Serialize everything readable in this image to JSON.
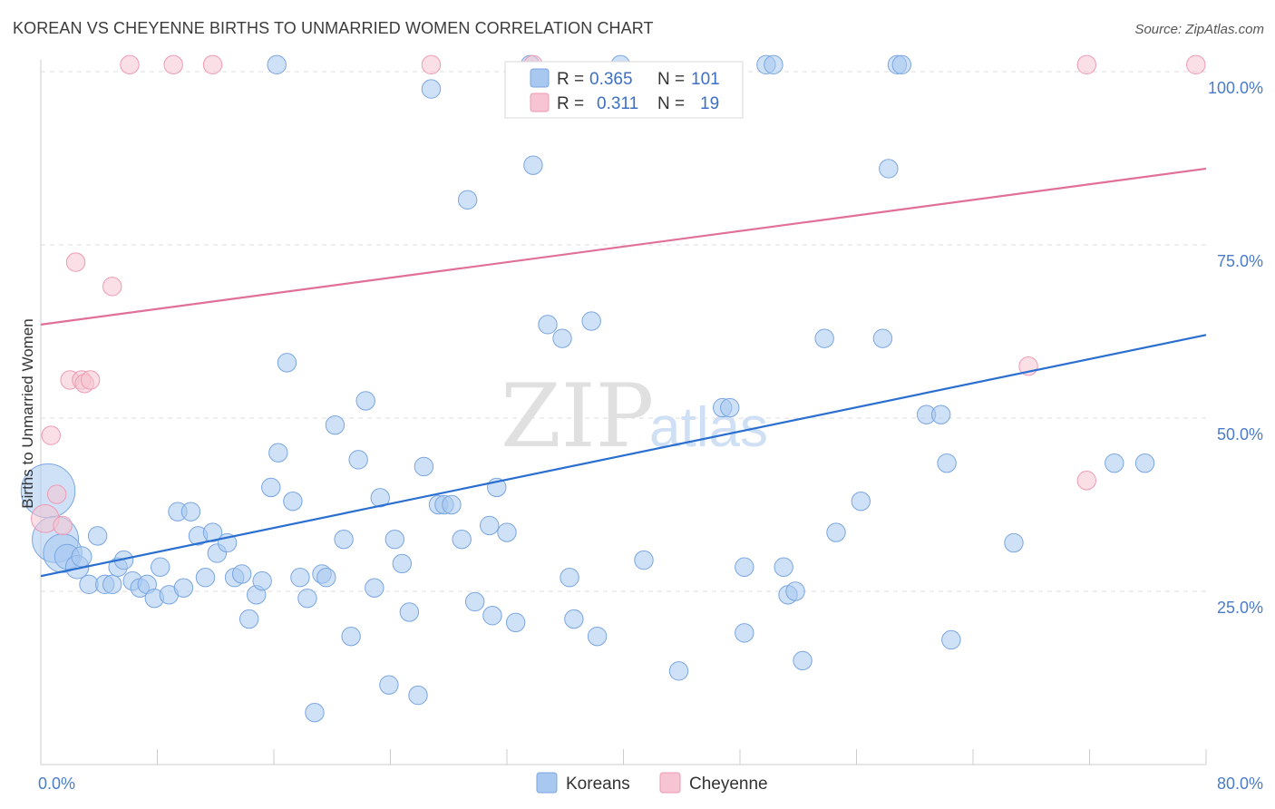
{
  "header": {
    "title": "KOREAN VS CHEYENNE BIRTHS TO UNMARRIED WOMEN CORRELATION CHART",
    "source": "Source: ZipAtlas.com"
  },
  "watermark": {
    "zip": "ZIP",
    "atlas": "atlas"
  },
  "legend": {
    "r_label": "R =",
    "n_label": "N =",
    "entries": [
      {
        "r": "0.365",
        "n": "101",
        "color": "#a8c8f0"
      },
      {
        "r": "0.311",
        "n": "19",
        "color": "#f6b8cb"
      }
    ]
  },
  "colors": {
    "blue_fill": "#a8c8f0",
    "blue_stroke": "#7aa6e0",
    "blue_line": "#2a6fcf",
    "pink_fill": "#f6c4d2",
    "pink_stroke": "#ee9ab3",
    "pink_line": "#e0709a"
  },
  "chart_data": {
    "type": "scatter",
    "title": "KOREAN VS CHEYENNE BIRTHS TO UNMARRIED WOMEN CORRELATION CHART",
    "ylabel": "Births to Unmarried Women",
    "xlabel": "",
    "xlim": [
      0,
      80
    ],
    "ylim": [
      0,
      100
    ],
    "x_tick_labels": [
      "0.0%",
      "80.0%"
    ],
    "y_tick_labels": [
      "100.0%",
      "75.0%",
      "50.0%",
      "25.0%"
    ],
    "y_tick_values": [
      100,
      75,
      50,
      25
    ],
    "grid": "horizontal dashed",
    "legend_position": "top-center",
    "series": [
      {
        "name": "Koreans",
        "r": 0.365,
        "n": 101,
        "trend": {
          "x": [
            0,
            80
          ],
          "y": [
            27.2,
            62.0
          ]
        },
        "points": [
          [
            0.5,
            39.5,
            3.5
          ],
          [
            1.0,
            32.5,
            3.0
          ],
          [
            1.5,
            30.5,
            2.5
          ],
          [
            1.8,
            30.0,
            1.6
          ],
          [
            2.5,
            28.5,
            1.5
          ],
          [
            2.8,
            30.0,
            1.3
          ],
          [
            3.3,
            26.0,
            1.2
          ],
          [
            3.9,
            33.0,
            1.2
          ],
          [
            4.4,
            26.0,
            1.2
          ],
          [
            4.9,
            26.0,
            1.2
          ],
          [
            5.3,
            28.5,
            1.2
          ],
          [
            5.7,
            29.5,
            1.2
          ],
          [
            6.3,
            26.5,
            1.2
          ],
          [
            6.8,
            25.5,
            1.2
          ],
          [
            7.3,
            26.0,
            1.2
          ],
          [
            7.8,
            24.0,
            1.2
          ],
          [
            8.2,
            28.5,
            1.2
          ],
          [
            8.8,
            24.5,
            1.2
          ],
          [
            9.4,
            36.5,
            1.2
          ],
          [
            9.8,
            25.5,
            1.2
          ],
          [
            10.3,
            36.5,
            1.2
          ],
          [
            10.8,
            33.0,
            1.2
          ],
          [
            11.3,
            27.0,
            1.2
          ],
          [
            11.8,
            33.5,
            1.2
          ],
          [
            12.1,
            30.5,
            1.2
          ],
          [
            12.8,
            32.0,
            1.2
          ],
          [
            13.3,
            27.0,
            1.2
          ],
          [
            13.8,
            27.5,
            1.2
          ],
          [
            14.3,
            21.0,
            1.2
          ],
          [
            14.8,
            24.5,
            1.2
          ],
          [
            15.2,
            26.5,
            1.2
          ],
          [
            15.8,
            40.0,
            1.2
          ],
          [
            16.3,
            45.0,
            1.2
          ],
          [
            16.9,
            58.0,
            1.2
          ],
          [
            17.3,
            38.0,
            1.2
          ],
          [
            17.8,
            27.0,
            1.2
          ],
          [
            18.3,
            24.0,
            1.2
          ],
          [
            18.8,
            7.5,
            1.2
          ],
          [
            19.3,
            27.5,
            1.2
          ],
          [
            19.6,
            27.0,
            1.2
          ],
          [
            20.2,
            49.0,
            1.2
          ],
          [
            20.8,
            32.5,
            1.2
          ],
          [
            21.3,
            18.5,
            1.2
          ],
          [
            21.8,
            44.0,
            1.2
          ],
          [
            22.3,
            52.5,
            1.2
          ],
          [
            22.9,
            25.5,
            1.2
          ],
          [
            23.3,
            38.5,
            1.2
          ],
          [
            23.9,
            11.5,
            1.2
          ],
          [
            24.3,
            32.5,
            1.2
          ],
          [
            24.8,
            29.0,
            1.2
          ],
          [
            25.3,
            22.0,
            1.2
          ],
          [
            25.9,
            10.0,
            1.2
          ],
          [
            26.3,
            43.0,
            1.2
          ],
          [
            26.8,
            97.5,
            1.2
          ],
          [
            27.3,
            37.5,
            1.2
          ],
          [
            27.7,
            37.5,
            1.2
          ],
          [
            28.2,
            37.5,
            1.2
          ],
          [
            28.9,
            32.5,
            1.2
          ],
          [
            29.3,
            81.5,
            1.2
          ],
          [
            29.8,
            23.5,
            1.2
          ],
          [
            30.8,
            34.5,
            1.2
          ],
          [
            31.0,
            21.5,
            1.2
          ],
          [
            31.3,
            40.0,
            1.2
          ],
          [
            32.0,
            33.5,
            1.2
          ],
          [
            32.6,
            20.5,
            1.2
          ],
          [
            33.6,
            101.0,
            1.2
          ],
          [
            33.8,
            86.5,
            1.2
          ],
          [
            34.8,
            63.5,
            1.2
          ],
          [
            35.8,
            61.5,
            1.2
          ],
          [
            36.3,
            27.0,
            1.2
          ],
          [
            36.6,
            21.0,
            1.2
          ],
          [
            37.8,
            64.0,
            1.2
          ],
          [
            38.2,
            18.5,
            1.2
          ],
          [
            39.8,
            101.0,
            1.2
          ],
          [
            41.4,
            29.5,
            1.2
          ],
          [
            43.8,
            13.5,
            1.2
          ],
          [
            46.8,
            51.5,
            1.2
          ],
          [
            47.3,
            51.5,
            1.2
          ],
          [
            48.3,
            28.5,
            1.2
          ],
          [
            48.3,
            19.0,
            1.2
          ],
          [
            49.8,
            101.0,
            1.2
          ],
          [
            50.3,
            101.0,
            1.2
          ],
          [
            51.0,
            28.5,
            1.2
          ],
          [
            51.3,
            24.5,
            1.2
          ],
          [
            51.8,
            25.0,
            1.2
          ],
          [
            52.3,
            15.0,
            1.2
          ],
          [
            53.8,
            61.5,
            1.2
          ],
          [
            54.6,
            33.5,
            1.2
          ],
          [
            56.3,
            38.0,
            1.2
          ],
          [
            57.8,
            61.5,
            1.2
          ],
          [
            58.2,
            86.0,
            1.2
          ],
          [
            58.8,
            101.0,
            1.2
          ],
          [
            59.1,
            101.0,
            1.2
          ],
          [
            60.8,
            50.5,
            1.2
          ],
          [
            61.8,
            50.5,
            1.2
          ],
          [
            62.2,
            43.5,
            1.2
          ],
          [
            62.5,
            18.0,
            1.2
          ],
          [
            66.8,
            32.0,
            1.2
          ],
          [
            73.7,
            43.5,
            1.2
          ],
          [
            75.8,
            43.5,
            1.2
          ],
          [
            16.2,
            101.0,
            1.2
          ]
        ]
      },
      {
        "name": "Cheyenne",
        "r": 0.311,
        "n": 19,
        "trend": {
          "x": [
            0,
            80
          ],
          "y": [
            63.5,
            86.0
          ]
        },
        "points": [
          [
            0.3,
            35.5,
            1.8
          ],
          [
            0.7,
            47.5,
            1.2
          ],
          [
            1.1,
            39.0,
            1.2
          ],
          [
            1.5,
            34.5,
            1.2
          ],
          [
            2.0,
            55.5,
            1.2
          ],
          [
            2.4,
            72.5,
            1.2
          ],
          [
            2.8,
            55.5,
            1.2
          ],
          [
            3.0,
            55.0,
            1.2
          ],
          [
            3.4,
            55.5,
            1.2
          ],
          [
            4.9,
            69.0,
            1.2
          ],
          [
            6.1,
            101.0,
            1.2
          ],
          [
            9.1,
            101.0,
            1.2
          ],
          [
            11.8,
            101.0,
            1.2
          ],
          [
            26.8,
            101.0,
            1.2
          ],
          [
            33.8,
            101.0,
            1.2
          ],
          [
            67.8,
            57.5,
            1.2
          ],
          [
            71.8,
            41.0,
            1.2
          ],
          [
            71.8,
            101.0,
            1.2
          ],
          [
            79.3,
            101.0,
            1.2
          ]
        ]
      }
    ]
  }
}
